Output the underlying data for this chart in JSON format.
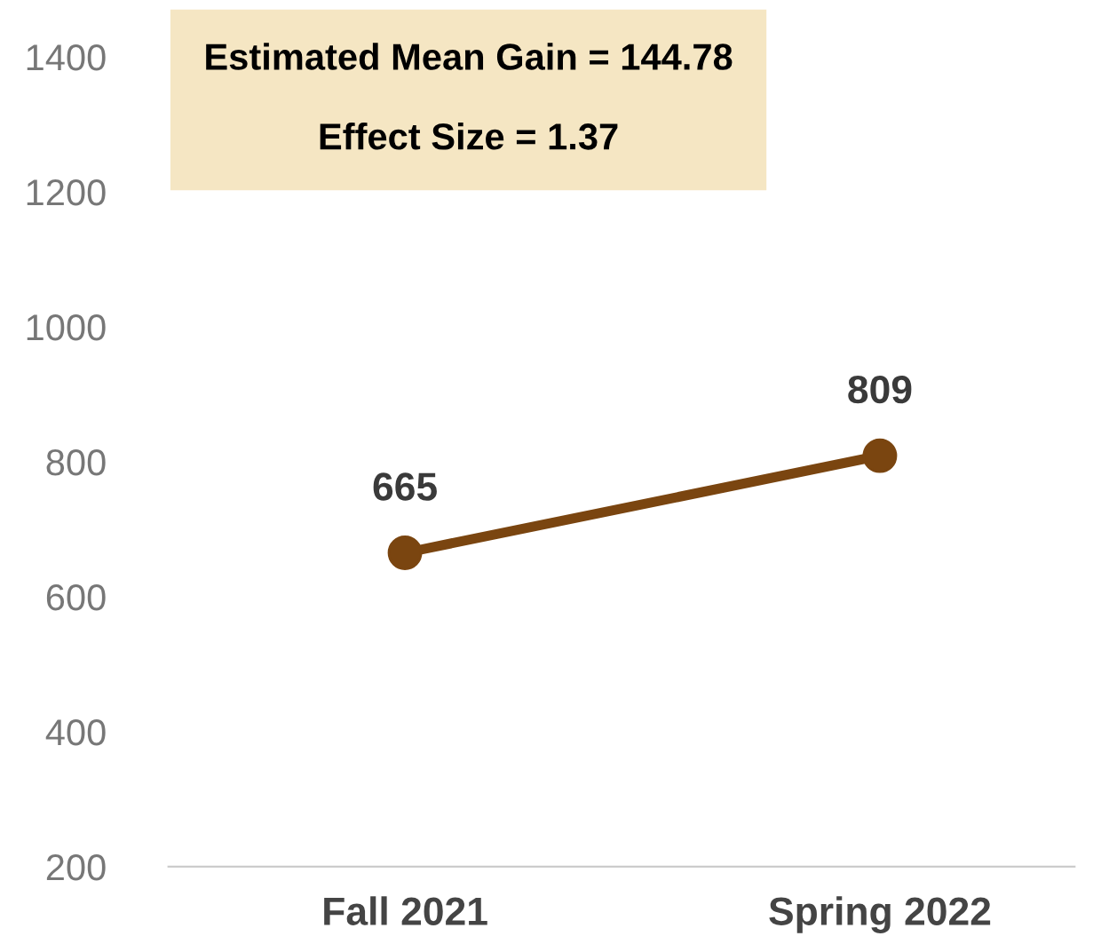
{
  "chart_data": {
    "type": "line",
    "categories": [
      "Fall 2021",
      "Spring 2022"
    ],
    "series": [
      {
        "color": "#7a4510",
        "values": [
          665,
          809
        ]
      }
    ],
    "ylim": [
      200,
      1400
    ],
    "yticks": [
      200,
      400,
      600,
      800,
      1000,
      1200,
      1400
    ],
    "marker": "circle",
    "line_style": "solid",
    "data_labels": true,
    "grid": false,
    "annotations": [
      "Estimated Mean Gain = 144.78",
      "Effect Size = 1.37"
    ]
  }
}
